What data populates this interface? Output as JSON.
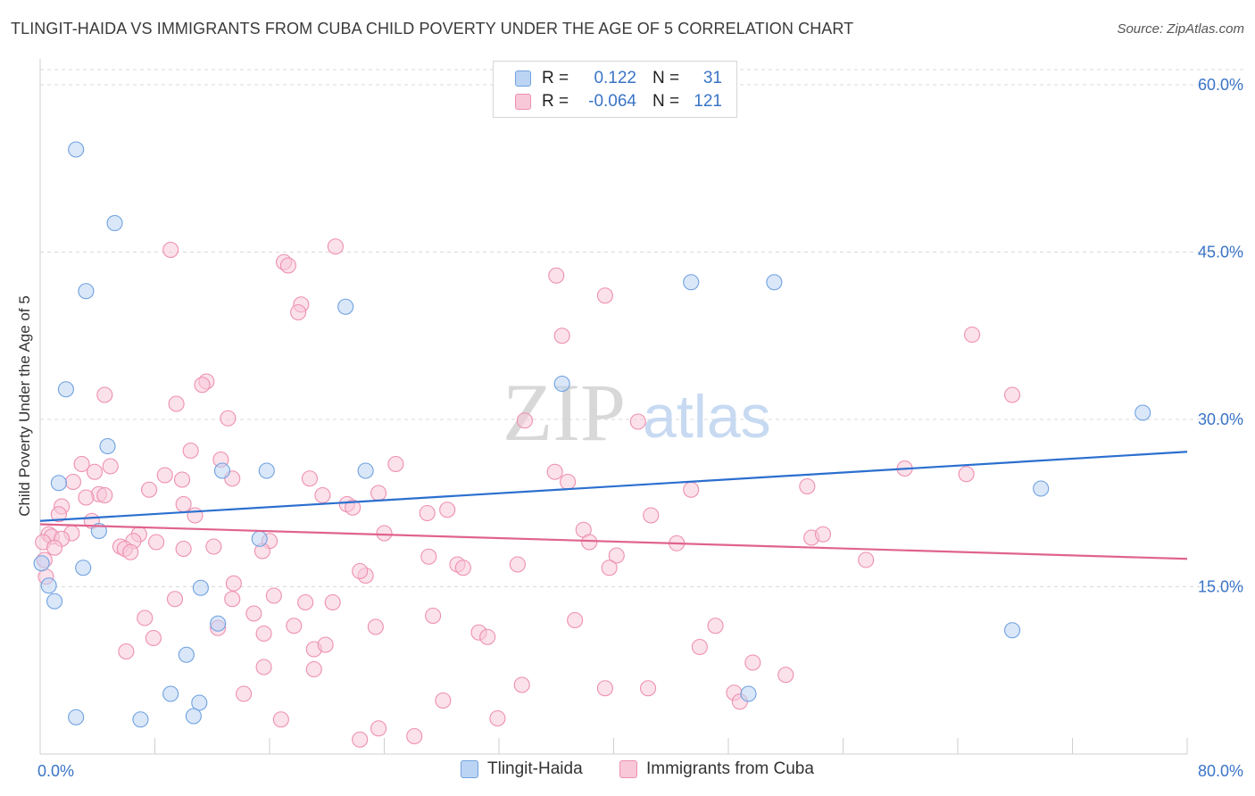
{
  "title": "TLINGIT-HAIDA VS IMMIGRANTS FROM CUBA CHILD POVERTY UNDER THE AGE OF 5 CORRELATION CHART",
  "source": "Source: ZipAtlas.com",
  "watermark": {
    "zip": "ZIP",
    "atlas": "atlas"
  },
  "colors": {
    "blue": "#6ea1e0",
    "blue_fill": "#bcd4f4",
    "blue_line": "#2b6fcf",
    "pink": "#ee8fb0",
    "pink_fill": "#f8c8d8",
    "pink_line": "#e0638e",
    "axis_text": "#3a74c7",
    "grid": "#d9d9d9"
  },
  "legend": {
    "rows": [
      {
        "r_label": "R =",
        "r_value": "0.122",
        "n_label": "N =",
        "n_value": "31"
      },
      {
        "r_label": "R =",
        "r_value": "-0.064",
        "n_label": "N =",
        "n_value": "121"
      }
    ]
  },
  "chart_data": {
    "type": "scatter",
    "title": "TLINGIT-HAIDA VS IMMIGRANTS FROM CUBA CHILD POVERTY UNDER THE AGE OF 5 CORRELATION CHART",
    "xlabel": "",
    "ylabel": "Child Poverty Under the Age of 5",
    "xlim": [
      0,
      80
    ],
    "ylim": [
      0,
      62
    ],
    "x_tick_labels": [
      {
        "value": 0,
        "label": "0.0%"
      },
      {
        "value": 80,
        "label": "80.0%"
      }
    ],
    "y_tick_labels": [
      {
        "value": 15,
        "label": "15.0%"
      },
      {
        "value": 30,
        "label": "30.0%"
      },
      {
        "value": 45,
        "label": "45.0%"
      },
      {
        "value": 60,
        "label": "60.0%"
      }
    ],
    "grid": true,
    "series": [
      {
        "name": "Tlingit-Haida",
        "color": "blue",
        "trend": {
          "x": [
            0,
            80
          ],
          "y": [
            20.9,
            27.1
          ]
        },
        "points": [
          [
            2.5,
            54.2
          ],
          [
            5.2,
            47.6
          ],
          [
            3.2,
            41.5
          ],
          [
            21.3,
            40.1
          ],
          [
            45.4,
            42.3
          ],
          [
            51.2,
            42.3
          ],
          [
            1.8,
            32.7
          ],
          [
            36.4,
            33.2
          ],
          [
            76.9,
            30.6
          ],
          [
            4.7,
            27.6
          ],
          [
            1.3,
            24.3
          ],
          [
            12.7,
            25.4
          ],
          [
            15.8,
            25.4
          ],
          [
            22.7,
            25.4
          ],
          [
            69.8,
            23.8
          ],
          [
            0.1,
            17.1
          ],
          [
            4.1,
            20.0
          ],
          [
            15.3,
            19.3
          ],
          [
            3.0,
            16.7
          ],
          [
            0.6,
            15.1
          ],
          [
            1.0,
            13.7
          ],
          [
            11.2,
            14.9
          ],
          [
            12.4,
            11.7
          ],
          [
            10.2,
            8.9
          ],
          [
            9.1,
            5.4
          ],
          [
            11.1,
            4.6
          ],
          [
            49.4,
            5.4
          ],
          [
            67.8,
            11.1
          ],
          [
            2.5,
            3.3
          ],
          [
            7.0,
            3.1
          ],
          [
            10.7,
            3.4
          ]
        ]
      },
      {
        "name": "Immigrants from Cuba",
        "color": "pink",
        "trend": {
          "x": [
            0,
            80
          ],
          "y": [
            20.6,
            17.5
          ]
        },
        "points": [
          [
            9.1,
            45.2
          ],
          [
            20.6,
            45.5
          ],
          [
            17.0,
            44.1
          ],
          [
            17.3,
            43.8
          ],
          [
            36.0,
            42.9
          ],
          [
            39.4,
            41.1
          ],
          [
            18.2,
            40.3
          ],
          [
            18.0,
            39.6
          ],
          [
            36.4,
            37.5
          ],
          [
            65.0,
            37.6
          ],
          [
            11.6,
            33.4
          ],
          [
            11.3,
            33.1
          ],
          [
            4.5,
            32.2
          ],
          [
            67.8,
            32.2
          ],
          [
            9.5,
            31.4
          ],
          [
            13.1,
            30.1
          ],
          [
            33.8,
            29.9
          ],
          [
            41.7,
            29.8
          ],
          [
            10.5,
            27.2
          ],
          [
            12.6,
            26.4
          ],
          [
            2.9,
            26.0
          ],
          [
            4.9,
            25.8
          ],
          [
            24.8,
            26.0
          ],
          [
            60.3,
            25.6
          ],
          [
            3.8,
            25.3
          ],
          [
            8.7,
            25.0
          ],
          [
            35.9,
            25.3
          ],
          [
            64.6,
            25.1
          ],
          [
            13.4,
            24.7
          ],
          [
            18.8,
            24.7
          ],
          [
            36.8,
            24.4
          ],
          [
            2.3,
            24.4
          ],
          [
            9.9,
            24.6
          ],
          [
            7.6,
            23.7
          ],
          [
            23.6,
            23.4
          ],
          [
            45.4,
            23.7
          ],
          [
            53.5,
            24.0
          ],
          [
            4.1,
            23.3
          ],
          [
            3.2,
            23.0
          ],
          [
            4.5,
            23.2
          ],
          [
            19.7,
            23.2
          ],
          [
            10.0,
            22.4
          ],
          [
            21.4,
            22.4
          ],
          [
            1.5,
            22.2
          ],
          [
            21.8,
            22.1
          ],
          [
            28.4,
            21.9
          ],
          [
            27.0,
            21.6
          ],
          [
            10.8,
            21.4
          ],
          [
            42.6,
            21.4
          ],
          [
            1.3,
            21.5
          ],
          [
            3.6,
            20.9
          ],
          [
            37.9,
            20.1
          ],
          [
            0.6,
            19.7
          ],
          [
            0.8,
            19.5
          ],
          [
            2.2,
            19.8
          ],
          [
            6.9,
            19.7
          ],
          [
            24.0,
            19.8
          ],
          [
            1.5,
            19.3
          ],
          [
            0.2,
            19.0
          ],
          [
            5.6,
            18.6
          ],
          [
            6.5,
            19.1
          ],
          [
            8.1,
            19.0
          ],
          [
            10.0,
            18.4
          ],
          [
            12.1,
            18.6
          ],
          [
            16.0,
            19.1
          ],
          [
            53.8,
            19.4
          ],
          [
            54.6,
            19.7
          ],
          [
            38.3,
            19.0
          ],
          [
            44.4,
            18.9
          ],
          [
            5.9,
            18.4
          ],
          [
            1.0,
            18.5
          ],
          [
            6.3,
            18.1
          ],
          [
            15.5,
            18.2
          ],
          [
            27.1,
            17.7
          ],
          [
            33.3,
            17.0
          ],
          [
            29.1,
            17.0
          ],
          [
            29.5,
            16.7
          ],
          [
            40.2,
            17.8
          ],
          [
            39.7,
            16.7
          ],
          [
            57.6,
            17.4
          ],
          [
            0.3,
            17.4
          ],
          [
            22.7,
            16.0
          ],
          [
            22.3,
            16.4
          ],
          [
            13.5,
            15.3
          ],
          [
            16.3,
            14.2
          ],
          [
            9.4,
            13.9
          ],
          [
            13.4,
            13.9
          ],
          [
            18.5,
            13.6
          ],
          [
            20.4,
            13.6
          ],
          [
            0.4,
            15.9
          ],
          [
            7.3,
            12.2
          ],
          [
            14.9,
            12.6
          ],
          [
            27.4,
            12.4
          ],
          [
            37.3,
            12.0
          ],
          [
            17.7,
            11.5
          ],
          [
            23.4,
            11.4
          ],
          [
            12.4,
            11.3
          ],
          [
            47.1,
            11.5
          ],
          [
            15.6,
            10.8
          ],
          [
            30.6,
            10.9
          ],
          [
            31.2,
            10.5
          ],
          [
            7.9,
            10.4
          ],
          [
            6.0,
            9.2
          ],
          [
            19.1,
            9.4
          ],
          [
            19.9,
            9.8
          ],
          [
            46.0,
            9.6
          ],
          [
            49.7,
            8.2
          ],
          [
            15.6,
            7.8
          ],
          [
            19.1,
            7.6
          ],
          [
            52.0,
            7.1
          ],
          [
            33.6,
            6.2
          ],
          [
            39.4,
            5.9
          ],
          [
            42.4,
            5.9
          ],
          [
            14.2,
            5.4
          ],
          [
            48.4,
            5.5
          ],
          [
            28.1,
            4.8
          ],
          [
            48.8,
            4.7
          ],
          [
            16.8,
            3.1
          ],
          [
            31.9,
            3.2
          ],
          [
            23.6,
            2.3
          ],
          [
            22.3,
            1.3
          ],
          [
            26.1,
            1.6
          ]
        ]
      }
    ],
    "legend": [
      "Tlingit-Haida",
      "Immigrants from Cuba"
    ]
  }
}
